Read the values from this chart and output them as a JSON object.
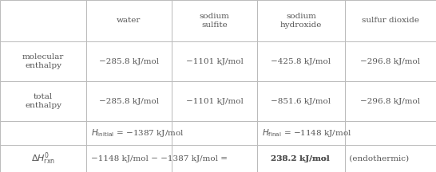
{
  "col_headers": [
    "",
    "water",
    "sodium\nsulfite",
    "sodium\nhydroxide",
    "sulfur dioxide"
  ],
  "row1_label": "molecular\nenthalpy",
  "row2_label": "total\nenthalpy",
  "row1_values": [
    "−285.8 kJ/mol",
    "−1101 kJ/mol",
    "−425.8 kJ/mol",
    "−296.8 kJ/mol"
  ],
  "row2_values": [
    "−285.8 kJ/mol",
    "−1101 kJ/mol",
    "−851.6 kJ/mol",
    "−296.8 kJ/mol"
  ],
  "bg_color": "#ffffff",
  "border_color": "#bbbbbb",
  "text_color": "#555555",
  "font_size": 7.5,
  "figw": 5.46,
  "figh": 2.16,
  "dpi": 100
}
